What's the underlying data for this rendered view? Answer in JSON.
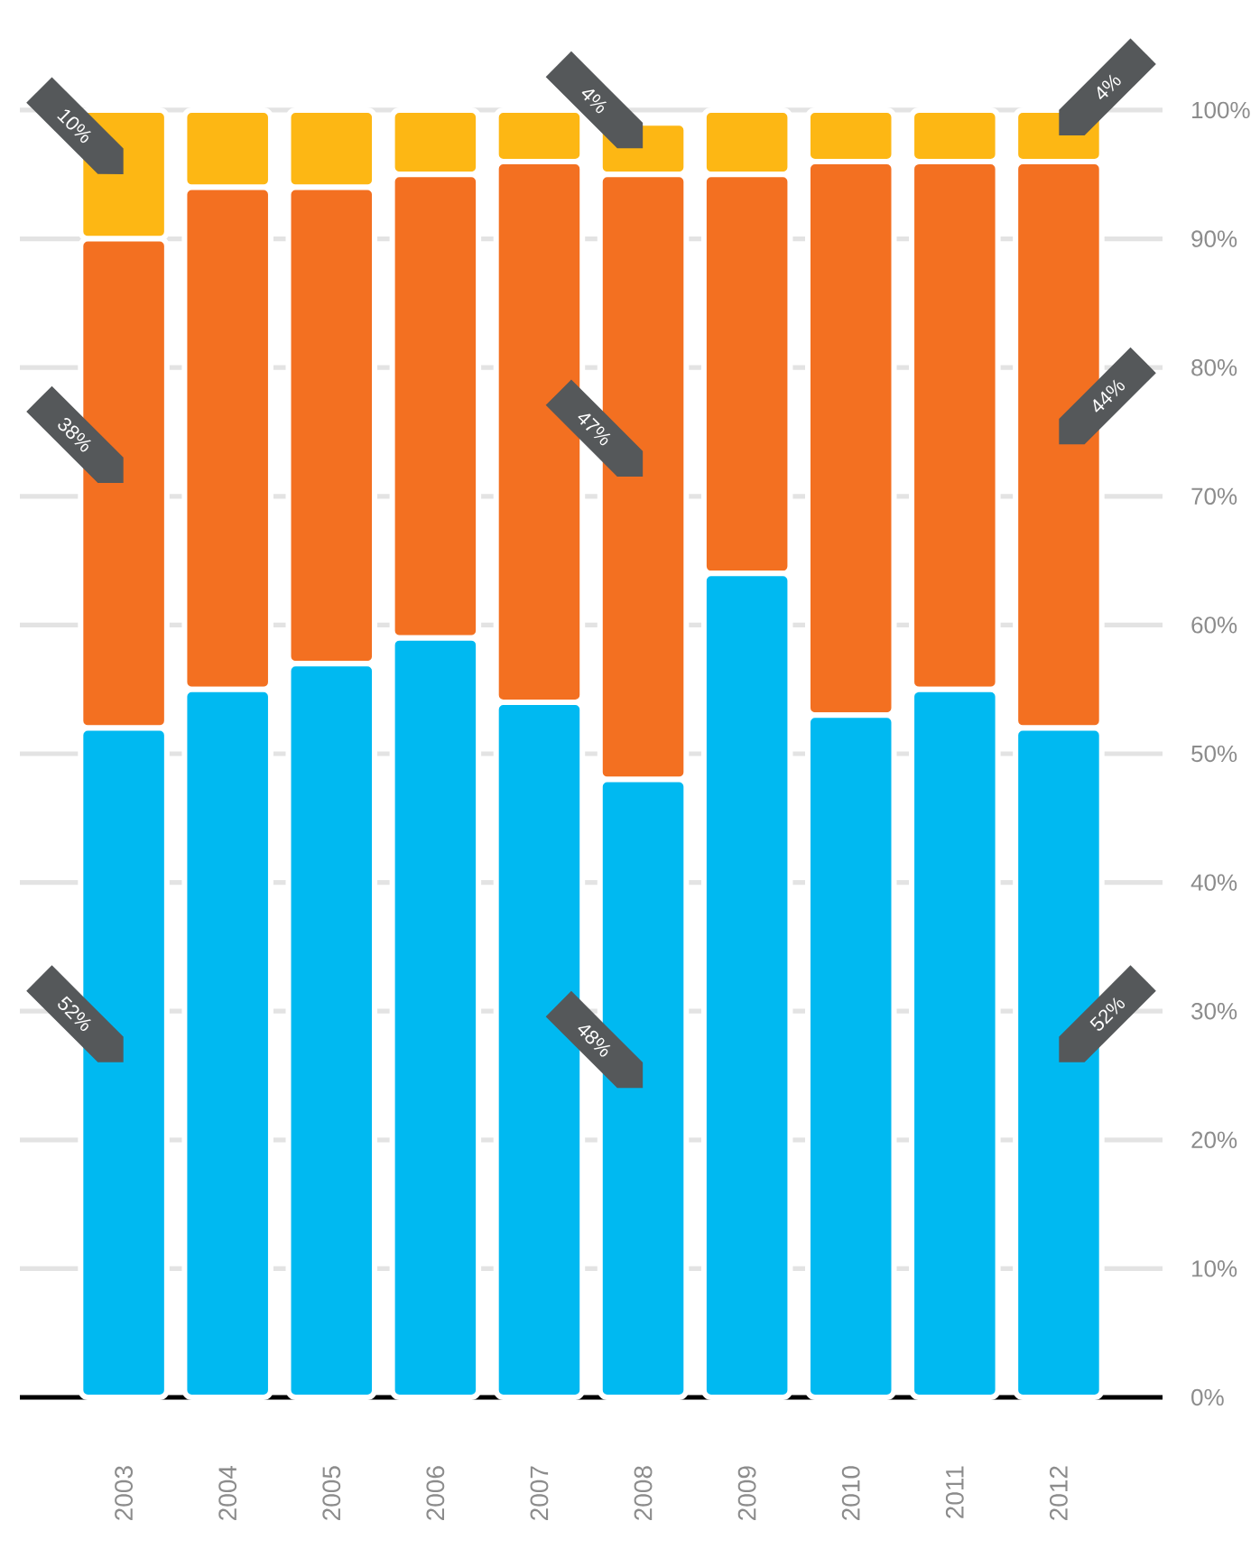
{
  "chart_data": {
    "type": "bar",
    "stacked": true,
    "categories": [
      "2003",
      "2004",
      "2005",
      "2006",
      "2007",
      "2008",
      "2009",
      "2010",
      "2011",
      "2012"
    ],
    "series": [
      {
        "color": "#00b9f1",
        "values": [
          52,
          55,
          57,
          59,
          54,
          48,
          64,
          53,
          55,
          52
        ],
        "value_labels": [
          "52%",
          null,
          null,
          null,
          null,
          "48%",
          null,
          null,
          null,
          "52%"
        ]
      },
      {
        "color": "#f37021",
        "values": [
          38,
          39,
          37,
          36,
          42,
          47,
          31,
          43,
          41,
          44
        ],
        "value_labels": [
          "38%",
          null,
          null,
          null,
          null,
          "47%",
          null,
          null,
          null,
          "44%"
        ]
      },
      {
        "color": "#fdb714",
        "values": [
          10,
          6,
          6,
          5,
          4,
          4,
          5,
          4,
          4,
          4
        ],
        "value_labels": [
          "10%",
          null,
          null,
          null,
          null,
          "4%",
          null,
          null,
          null,
          "4%"
        ]
      }
    ],
    "ylim": [
      0,
      100
    ],
    "yticks": [
      {
        "value": 0,
        "label": "0%"
      },
      {
        "value": 10,
        "label": "10%"
      },
      {
        "value": 20,
        "label": "20%"
      },
      {
        "value": 30,
        "label": "30%"
      },
      {
        "value": 40,
        "label": "40%"
      },
      {
        "value": 50,
        "label": "50%"
      },
      {
        "value": 60,
        "label": "60%"
      },
      {
        "value": 70,
        "label": "70%"
      },
      {
        "value": 80,
        "label": "80%"
      },
      {
        "value": 90,
        "label": "90%"
      },
      {
        "value": 100,
        "label": "100%"
      }
    ],
    "grid": "y"
  }
}
